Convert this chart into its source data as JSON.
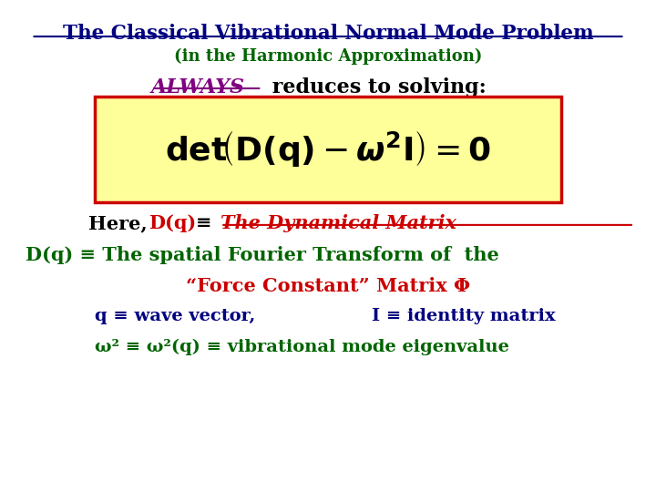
{
  "title": "The Classical Vibrational Normal Mode Problem",
  "title_color": "#000080",
  "subtitle": "(in the Harmonic Approximation)",
  "subtitle_color": "#006400",
  "always_text": "ALWAYS",
  "always_color": "#800080",
  "reduces_text": " reduces to solving:",
  "reduces_color": "#000000",
  "box_facecolor": "#FFFF99",
  "box_edgecolor": "#CC0000",
  "line2_text": "D(q) ≡ The spatial Fourier Transform of  the",
  "line2_color": "#006400",
  "line3_text": "“Force Constant” Matrix Φ",
  "line3_color": "#CC0000",
  "line4a_text": "q ≡ wave vector,",
  "line4b_text": "I ≡ identity matrix",
  "line4_color": "#000080",
  "line5_text": "ω² ≡ ω²(q) ≡ vibrational mode eigenvalue",
  "line5_color": "#006400",
  "background_color": "#ffffff"
}
